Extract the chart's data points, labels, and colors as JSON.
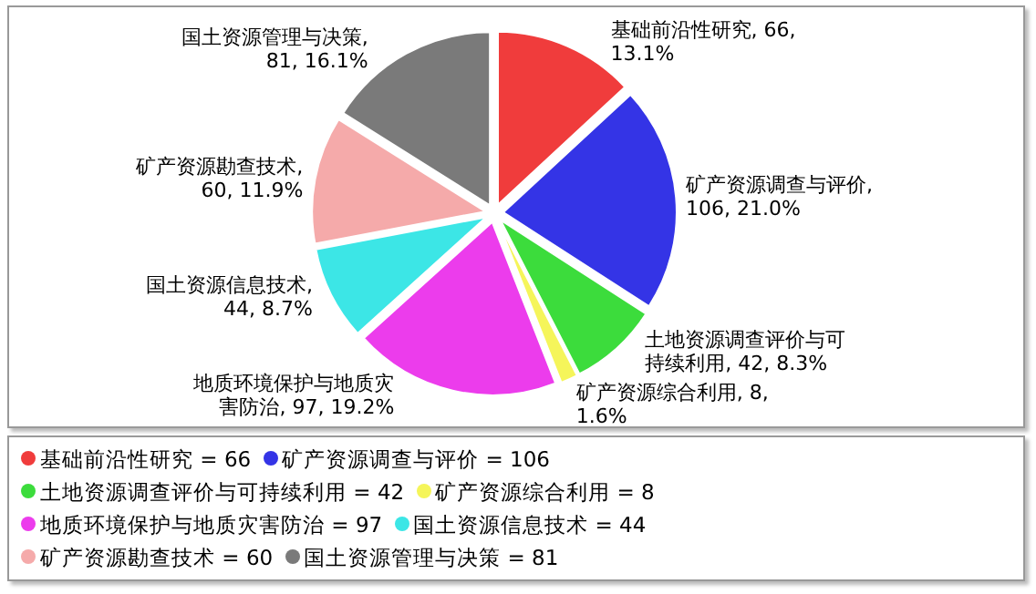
{
  "chart_data": {
    "type": "pie",
    "categories": [
      "基础前沿性研究 = 66",
      "矿产资源调查与评价 = 106",
      "土地资源调查评价与可持续利用 = 42",
      "矿产资源综合利用 = 8",
      "地质环境保护与地质灾害防治 = 97",
      "国土资源信息技术 = 44",
      "矿产资源勘查技术 = 60",
      "国土资源管理与决策 = 81"
    ],
    "values": [
      66,
      106,
      42,
      8,
      97,
      44,
      60,
      81
    ],
    "value_labels": [
      "基础前沿性研究, 66, 13.1%",
      "矿产资源调查与评价, 106, 21.0%",
      "土地资源调查评价与可持续利用, 42, 8.3%",
      "矿产资源综合利用, 8, 1.6%",
      "地质环境保护与地质灾害防治, 97, 19.2%",
      "国土资源信息技术, 44, 8.7%",
      "矿产资源勘查技术, 60, 11.9%",
      "国土资源管理与决策, 81, 16.1%"
    ],
    "colors": [
      "#f03c3c",
      "#3434e6",
      "#3cdc3c",
      "#f5f55a",
      "#ec3cec",
      "#3ce6e6",
      "#f5aaaa",
      "#7a7a7a"
    ],
    "legend": "bottom"
  }
}
